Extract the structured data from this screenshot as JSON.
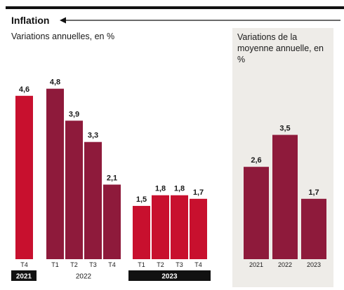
{
  "header": {
    "title": "Inflation"
  },
  "left_panel": {
    "subtitle": "Variations annuelles, en %"
  },
  "right_panel": {
    "subtitle": "Variations de la moyenne annuelle, en %"
  },
  "colors": {
    "bright_red": "#c8102e",
    "dark_red": "#8e1a3b",
    "panel_bg": "#eeece8",
    "year_box": "#111111"
  },
  "chart_data": [
    {
      "type": "bar",
      "title": "",
      "subtitle": "Variations annuelles, en %",
      "unit": "%",
      "categories": [
        "T4",
        "T1",
        "T2",
        "T3",
        "T4",
        "T1",
        "T2",
        "T3",
        "T4"
      ],
      "value_labels": [
        "4,6",
        "4,8",
        "3,9",
        "3,3",
        "2,1",
        "1,5",
        "1,8",
        "1,8",
        "1,7"
      ],
      "values": [
        4.6,
        4.8,
        3.9,
        3.3,
        2.1,
        1.5,
        1.8,
        1.8,
        1.7
      ],
      "groups": [
        {
          "label": "2021",
          "boxed": true,
          "color": "bright_red",
          "count": 1
        },
        {
          "label": "2022",
          "boxed": false,
          "color": "dark_red",
          "count": 4
        },
        {
          "label": "2023",
          "boxed": true,
          "color": "bright_red",
          "count": 4
        }
      ],
      "ylim": [
        0,
        6.3
      ],
      "grid": false
    },
    {
      "type": "bar",
      "title": "",
      "subtitle": "Variations de la moyenne annuelle, en %",
      "unit": "%",
      "categories": [
        "2021",
        "2022",
        "2023"
      ],
      "value_labels": [
        "2,6",
        "3,5",
        "1,7"
      ],
      "values": [
        2.6,
        3.5,
        1.7
      ],
      "color": "dark_red",
      "ylim": [
        0,
        6.3
      ],
      "grid": false
    }
  ]
}
